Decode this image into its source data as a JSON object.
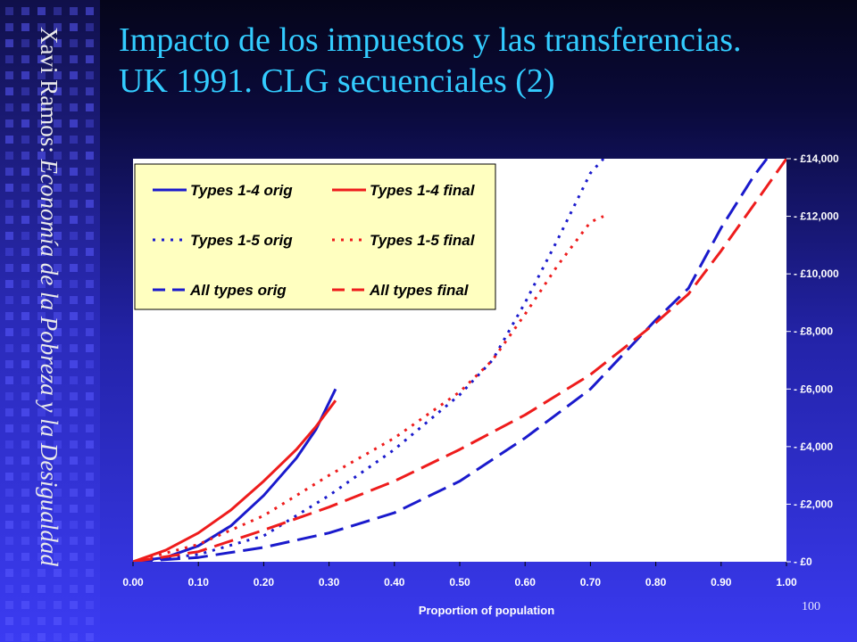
{
  "title_line1": "Impacto de los impuestos y las transferencias.",
  "title_line2": "UK 1991. CLG secuenciales (2)",
  "sidebar": {
    "author": "Xavi Ramos:",
    "course": "Economía de la Pobreza y la Desigualdad"
  },
  "page_number": "100",
  "colors": {
    "orig": "#1a1acc",
    "final": "#ee1c1c",
    "title": "#33ccff",
    "legend_bg": "#ffffc0"
  },
  "chart_data": {
    "type": "line",
    "xlabel": "Proportion of population",
    "ylabel": "",
    "xlim": [
      0,
      1
    ],
    "ylim": [
      0,
      14000
    ],
    "x_ticks": [
      "0.00",
      "0.10",
      "0.20",
      "0.30",
      "0.40",
      "0.50",
      "0.60",
      "0.70",
      "0.80",
      "0.90",
      "1.00"
    ],
    "y_ticks": [
      "£0",
      "£2,000",
      "£4,000",
      "£6,000",
      "£8,000",
      "£10,000",
      "£12,000",
      "£14,000"
    ],
    "y_axis_position": "right",
    "grid": false,
    "legend_placement": "top-left",
    "series": [
      {
        "name": "Types 1-4 orig",
        "color": "orig",
        "dash": "solid",
        "x": [
          0,
          0.05,
          0.1,
          0.15,
          0.2,
          0.25,
          0.28,
          0.31
        ],
        "y": [
          0,
          150,
          550,
          1250,
          2300,
          3600,
          4600,
          6000
        ]
      },
      {
        "name": "Types 1-4 final",
        "color": "final",
        "dash": "solid",
        "x": [
          0,
          0.05,
          0.1,
          0.15,
          0.2,
          0.25,
          0.28,
          0.31
        ],
        "y": [
          0,
          400,
          1000,
          1800,
          2800,
          3900,
          4700,
          5600
        ]
      },
      {
        "name": "Types 1-5 orig",
        "color": "orig",
        "dash": "dotted",
        "x": [
          0,
          0.1,
          0.2,
          0.3,
          0.4,
          0.5,
          0.55,
          0.6,
          0.65,
          0.7,
          0.72
        ],
        "y": [
          0,
          250,
          900,
          2300,
          3900,
          5800,
          7000,
          9000,
          11200,
          13500,
          14000
        ]
      },
      {
        "name": "Types 1-5 final",
        "color": "final",
        "dash": "dotted",
        "x": [
          0,
          0.1,
          0.2,
          0.3,
          0.4,
          0.5,
          0.55,
          0.6,
          0.65,
          0.7,
          0.72
        ],
        "y": [
          0,
          600,
          1600,
          3000,
          4300,
          5900,
          7000,
          8600,
          10300,
          11800,
          12000
        ]
      },
      {
        "name": "All types orig",
        "color": "orig",
        "dash": "dashed",
        "x": [
          0,
          0.1,
          0.2,
          0.3,
          0.4,
          0.5,
          0.6,
          0.7,
          0.8,
          0.85,
          0.9,
          0.95,
          0.97
        ],
        "y": [
          0,
          150,
          500,
          1000,
          1700,
          2800,
          4300,
          6000,
          8400,
          9500,
          11600,
          13400,
          14000
        ]
      },
      {
        "name": "All types final",
        "color": "final",
        "dash": "dashed",
        "x": [
          0,
          0.1,
          0.2,
          0.3,
          0.4,
          0.5,
          0.6,
          0.7,
          0.8,
          0.85,
          0.9,
          0.95,
          1.0
        ],
        "y": [
          0,
          350,
          1100,
          1900,
          2800,
          3900,
          5100,
          6500,
          8300,
          9300,
          10800,
          12400,
          14000
        ]
      }
    ]
  }
}
